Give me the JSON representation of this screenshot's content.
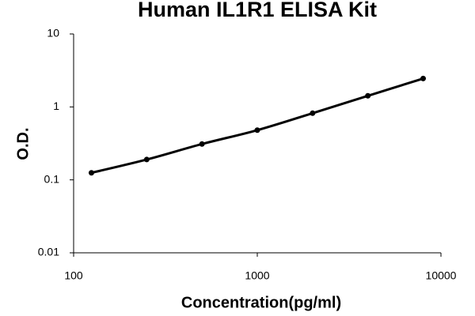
{
  "chart_data": {
    "type": "scatter",
    "title": "Human IL1R1 ELISA Kit",
    "x_label": "Concentration(pg/ml)",
    "y_label": "O.D.",
    "x": [
      125,
      250,
      500,
      1000,
      2000,
      4000,
      8000
    ],
    "values": [
      0.125,
      0.19,
      0.31,
      0.48,
      0.82,
      1.42,
      2.45
    ],
    "color": "#000000",
    "curve": true,
    "xlog": true,
    "ylog": true,
    "xlim": [
      100,
      10000
    ],
    "xticks": [
      100,
      1000,
      10000
    ],
    "ylim": [
      0.01,
      10
    ],
    "yticks": [
      10,
      1,
      0.1,
      0.01
    ]
  }
}
